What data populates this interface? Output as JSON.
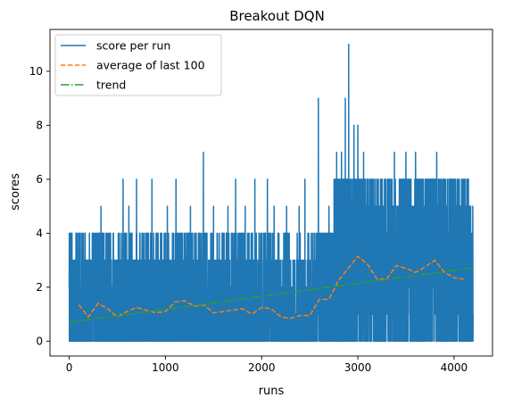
{
  "chart_data": {
    "type": "line",
    "title": "Breakout DQN",
    "xlabel": "runs",
    "ylabel": "scores",
    "xlim": [
      -200,
      4400
    ],
    "ylim": [
      -0.55,
      11.55
    ],
    "xticks": [
      0,
      1000,
      2000,
      3000,
      4000
    ],
    "yticks": [
      0,
      2,
      4,
      6,
      8,
      10
    ],
    "grid": false,
    "legend_position": "top-left",
    "n_runs": 4200,
    "series": [
      {
        "name": "score per run",
        "style": "solid",
        "color": "#1f77b4",
        "description": "per-run score, noisy between 0 and ~4 for runs 0-2750 with spikes up to 6-9; after run ~2750 scores mostly range 0-6 with spikes to 8 and a peak of 11 near run 2900",
        "typical_max_by_segment": [
          {
            "x_from": 0,
            "x_to": 2750,
            "max": 4
          },
          {
            "x_from": 2750,
            "x_to": 4200,
            "max": 6
          }
        ],
        "spikes": [
          {
            "x": 20,
            "y": 4
          },
          {
            "x": 210,
            "y": 4
          },
          {
            "x": 330,
            "y": 5
          },
          {
            "x": 560,
            "y": 6
          },
          {
            "x": 620,
            "y": 5
          },
          {
            "x": 700,
            "y": 6
          },
          {
            "x": 860,
            "y": 6
          },
          {
            "x": 1020,
            "y": 5
          },
          {
            "x": 1110,
            "y": 6
          },
          {
            "x": 1260,
            "y": 5
          },
          {
            "x": 1395,
            "y": 7
          },
          {
            "x": 1500,
            "y": 5
          },
          {
            "x": 1650,
            "y": 5
          },
          {
            "x": 1730,
            "y": 6
          },
          {
            "x": 1830,
            "y": 5
          },
          {
            "x": 1930,
            "y": 6
          },
          {
            "x": 2060,
            "y": 6
          },
          {
            "x": 2130,
            "y": 5
          },
          {
            "x": 2260,
            "y": 5
          },
          {
            "x": 2390,
            "y": 5
          },
          {
            "x": 2450,
            "y": 6
          },
          {
            "x": 2590,
            "y": 9
          },
          {
            "x": 2700,
            "y": 5
          },
          {
            "x": 2780,
            "y": 7
          },
          {
            "x": 2830,
            "y": 7
          },
          {
            "x": 2870,
            "y": 9
          },
          {
            "x": 2905,
            "y": 11
          },
          {
            "x": 2960,
            "y": 8
          },
          {
            "x": 3000,
            "y": 8
          },
          {
            "x": 3060,
            "y": 7
          },
          {
            "x": 3200,
            "y": 6
          },
          {
            "x": 3380,
            "y": 7
          },
          {
            "x": 3500,
            "y": 7
          },
          {
            "x": 3600,
            "y": 7
          },
          {
            "x": 3820,
            "y": 7
          },
          {
            "x": 3950,
            "y": 6
          },
          {
            "x": 4150,
            "y": 6
          }
        ]
      },
      {
        "name": "average of last 100",
        "style": "dashed",
        "color": "#ff7f0e",
        "x": [
          100,
          200,
          300,
          400,
          500,
          600,
          700,
          800,
          900,
          1000,
          1100,
          1200,
          1300,
          1400,
          1500,
          1600,
          1700,
          1800,
          1900,
          2000,
          2100,
          2200,
          2300,
          2400,
          2500,
          2600,
          2700,
          2800,
          2900,
          3000,
          3100,
          3200,
          3300,
          3400,
          3500,
          3600,
          3700,
          3800,
          3900,
          4000,
          4100
        ],
        "values": [
          1.35,
          0.9,
          1.4,
          1.2,
          0.9,
          1.1,
          1.25,
          1.15,
          1.05,
          1.1,
          1.45,
          1.5,
          1.3,
          1.35,
          1.05,
          1.1,
          1.15,
          1.2,
          1.0,
          1.25,
          1.2,
          0.9,
          0.85,
          0.95,
          0.95,
          1.55,
          1.55,
          2.25,
          2.7,
          3.15,
          2.85,
          2.3,
          2.3,
          2.8,
          2.7,
          2.55,
          2.75,
          3.0,
          2.55,
          2.35,
          2.3
        ]
      },
      {
        "name": "trend",
        "style": "dashdot",
        "color": "#2ca02c",
        "x": [
          0,
          4200
        ],
        "values": [
          0.7,
          2.72
        ]
      }
    ]
  }
}
